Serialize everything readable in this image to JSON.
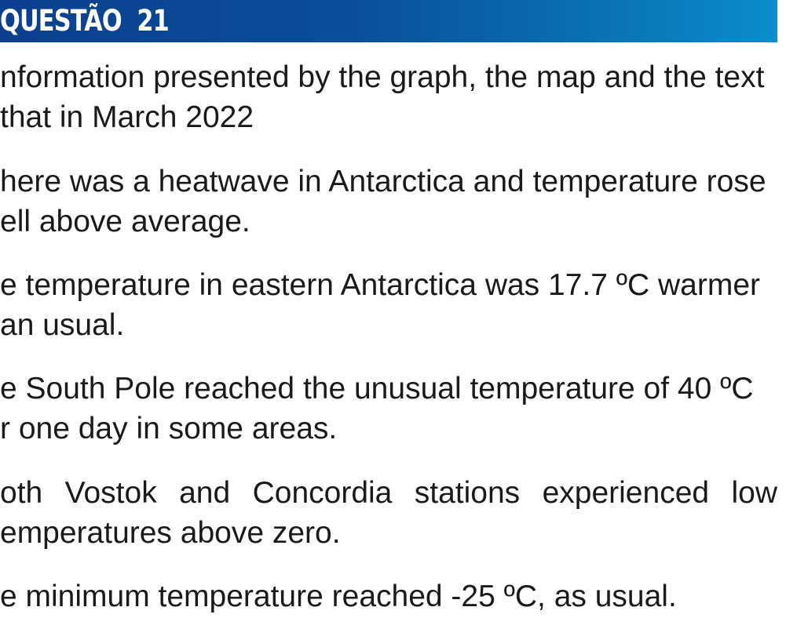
{
  "header": {
    "title": "QUESTÃO  21"
  },
  "intro": {
    "line1": "nformation presented by the graph, the map and the text",
    "line2": "that in March 2022"
  },
  "options": [
    {
      "line1": "here was a heatwave in Antarctica and temperature rose",
      "line2": "ell above average."
    },
    {
      "line1": "e temperature in eastern Antarctica was 17.7 ºC warmer",
      "line2": "an usual."
    },
    {
      "line1": "e South Pole reached the unusual temperature of 40 ºC",
      "line2": "r one day in some areas."
    },
    {
      "line1": "oth Vostok and Concordia stations experienced low",
      "line2": "emperatures above zero."
    },
    {
      "line1": "e minimum temperature reached -25 ºC, as usual."
    }
  ],
  "colors": {
    "banner_start": "#0c3f8d",
    "banner_end": "#0a8dcc",
    "text": "#1a1a1a"
  }
}
